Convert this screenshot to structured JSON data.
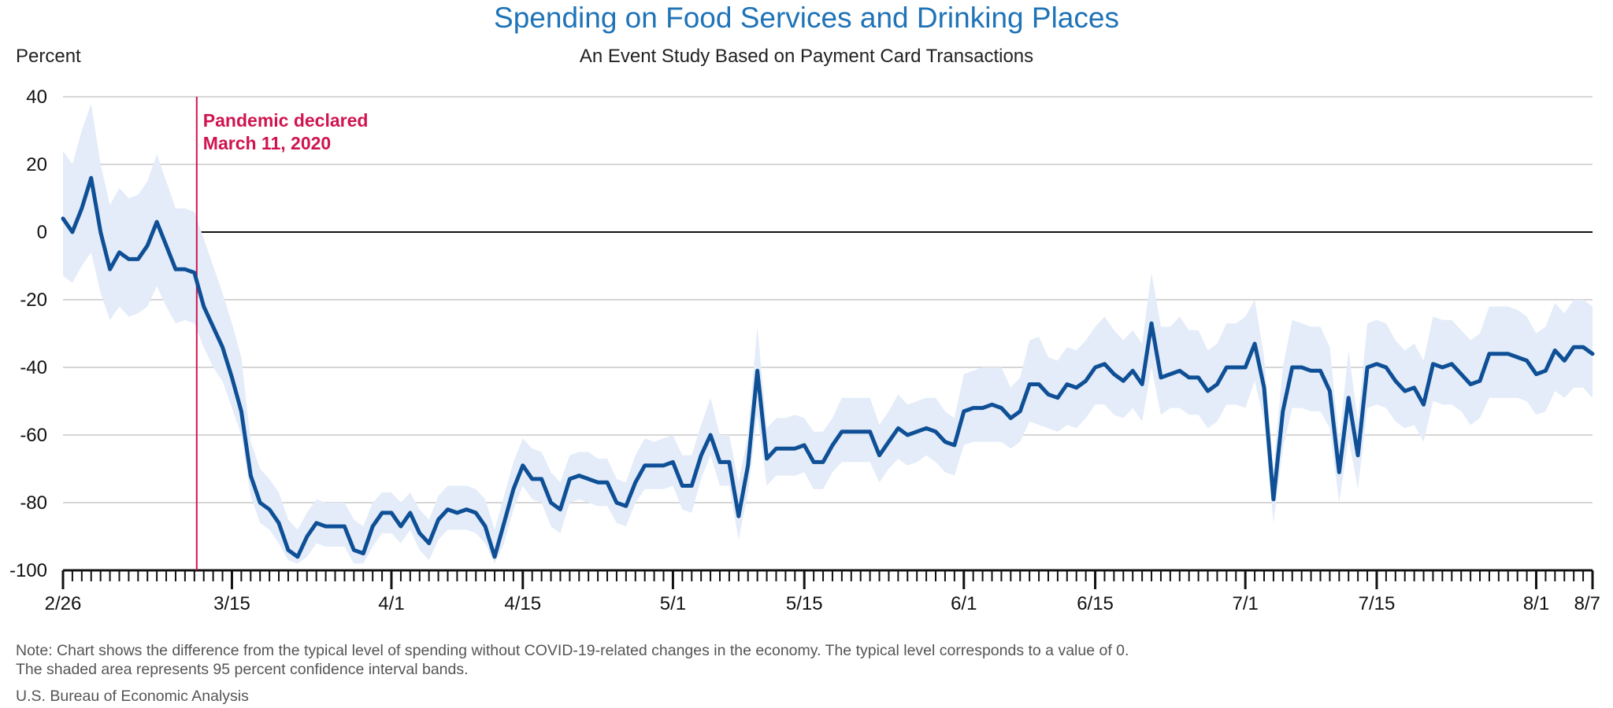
{
  "chart_data": {
    "type": "line",
    "title": "Spending on Food Services and Drinking Places",
    "subtitle": "An Event Study Based on Payment Card Transactions",
    "ylabel": "Percent",
    "ylim": [
      -100,
      40
    ],
    "yticks": [
      40,
      20,
      0,
      -20,
      -40,
      -60,
      -80,
      -100
    ],
    "xlim": [
      "2020-02-26",
      "2020-08-07"
    ],
    "xticks": [
      {
        "date": "2020-02-26",
        "label": "2/26"
      },
      {
        "date": "2020-03-15",
        "label": "3/15"
      },
      {
        "date": "2020-04-01",
        "label": "4/1"
      },
      {
        "date": "2020-04-15",
        "label": "4/15"
      },
      {
        "date": "2020-05-01",
        "label": "5/1"
      },
      {
        "date": "2020-05-15",
        "label": "5/15"
      },
      {
        "date": "2020-06-01",
        "label": "6/1"
      },
      {
        "date": "2020-06-15",
        "label": "6/15"
      },
      {
        "date": "2020-07-01",
        "label": "7/1"
      },
      {
        "date": "2020-07-15",
        "label": "7/15"
      },
      {
        "date": "2020-08-01",
        "label": "8/1"
      },
      {
        "date": "2020-08-07",
        "label": "8/7"
      }
    ],
    "grid": true,
    "zero_line": true,
    "x_start_date": "2020-02-26",
    "values": [
      4,
      0,
      7,
      16,
      0,
      -11,
      -6,
      -8,
      -8,
      -4,
      3,
      -4,
      -11,
      -11,
      -12,
      -22,
      -28,
      -34,
      -43,
      -53,
      -72,
      -80,
      -82,
      -86,
      -94,
      -96,
      -90,
      -86,
      -87,
      -87,
      -87,
      -94,
      -95,
      -87,
      -83,
      -83,
      -87,
      -83,
      -89,
      -92,
      -85,
      -82,
      -83,
      -82,
      -83,
      -87,
      -96,
      -86,
      -76,
      -69,
      -73,
      -73,
      -80,
      -82,
      -73,
      -72,
      -73,
      -74,
      -74,
      -80,
      -81,
      -74,
      -69,
      -69,
      -69,
      -68,
      -75,
      -75,
      -66,
      -60,
      -68,
      -68,
      -84,
      -69,
      -41,
      -67,
      -64,
      -64,
      -64,
      -63,
      -68,
      -68,
      -63,
      -59,
      -59,
      -59,
      -59,
      -66,
      -62,
      -58,
      -60,
      -59,
      -58,
      -59,
      -62,
      -63,
      -53,
      -52,
      -52,
      -51,
      -52,
      -55,
      -53,
      -45,
      -45,
      -48,
      -49,
      -45,
      -46,
      -44,
      -40,
      -39,
      -42,
      -44,
      -41,
      -45,
      -27,
      -43,
      -42,
      -41,
      -43,
      -43,
      -47,
      -45,
      -40,
      -40,
      -40,
      -33,
      -46,
      -79,
      -53,
      -40,
      -40,
      -41,
      -41,
      -47,
      -71,
      -49,
      -66,
      -40,
      -39,
      -40,
      -44,
      -47,
      -46,
      -51,
      -39,
      -40,
      -39,
      -42,
      -45,
      -44,
      -36,
      -36,
      -36,
      -37,
      -38,
      -42,
      -41,
      -35,
      -38,
      -34,
      -34,
      -36
    ],
    "ci_upper": [
      24,
      20,
      30,
      38,
      20,
      8,
      13,
      10,
      11,
      15,
      23,
      15,
      7,
      7,
      6,
      -2,
      -10,
      -18,
      -27,
      -37,
      -62,
      -70,
      -73,
      -77,
      -85,
      -88,
      -83,
      -79,
      -80,
      -80,
      -80,
      -85,
      -87,
      -80,
      -77,
      -77,
      -80,
      -77,
      -82,
      -85,
      -78,
      -75,
      -75,
      -75,
      -76,
      -79,
      -88,
      -78,
      -68,
      -61,
      -64,
      -65,
      -71,
      -74,
      -66,
      -65,
      -65,
      -67,
      -67,
      -73,
      -74,
      -66,
      -61,
      -62,
      -61,
      -60,
      -66,
      -66,
      -57,
      -49,
      -60,
      -60,
      -74,
      -60,
      -28,
      -58,
      -55,
      -55,
      -54,
      -55,
      -59,
      -59,
      -55,
      -49,
      -49,
      -49,
      -49,
      -57,
      -53,
      -48,
      -51,
      -50,
      -49,
      -49,
      -53,
      -55,
      -42,
      -41,
      -40,
      -40,
      -40,
      -46,
      -43,
      -32,
      -31,
      -37,
      -38,
      -34,
      -35,
      -32,
      -28,
      -25,
      -29,
      -32,
      -29,
      -33,
      -12,
      -28,
      -28,
      -25,
      -29,
      -29,
      -35,
      -33,
      -27,
      -27,
      -25,
      -20,
      -37,
      -70,
      -40,
      -26,
      -27,
      -28,
      -28,
      -34,
      -62,
      -35,
      -56,
      -27,
      -26,
      -27,
      -32,
      -35,
      -33,
      -38,
      -25,
      -26,
      -26,
      -29,
      -32,
      -30,
      -22,
      -22,
      -22,
      -23,
      -25,
      -30,
      -28,
      -21,
      -24,
      -20,
      -20,
      -22
    ],
    "ci_lower": [
      -13,
      -15,
      -10,
      -6,
      -18,
      -26,
      -22,
      -25,
      -24,
      -22,
      -16,
      -22,
      -27,
      -26,
      -27,
      -34,
      -40,
      -44,
      -52,
      -60,
      -78,
      -86,
      -88,
      -92,
      -97,
      -98,
      -96,
      -92,
      -93,
      -93,
      -93,
      -98,
      -98,
      -93,
      -89,
      -89,
      -92,
      -88,
      -94,
      -97,
      -91,
      -88,
      -88,
      -88,
      -89,
      -92,
      -98,
      -92,
      -82,
      -75,
      -79,
      -80,
      -87,
      -89,
      -80,
      -79,
      -80,
      -81,
      -81,
      -86,
      -87,
      -80,
      -76,
      -76,
      -76,
      -75,
      -82,
      -83,
      -73,
      -66,
      -75,
      -75,
      -91,
      -77,
      -54,
      -75,
      -72,
      -72,
      -72,
      -71,
      -76,
      -76,
      -71,
      -68,
      -68,
      -68,
      -68,
      -74,
      -70,
      -67,
      -69,
      -68,
      -66,
      -68,
      -71,
      -72,
      -63,
      -62,
      -62,
      -62,
      -62,
      -64,
      -62,
      -56,
      -57,
      -58,
      -59,
      -57,
      -58,
      -55,
      -51,
      -51,
      -54,
      -55,
      -52,
      -56,
      -40,
      -54,
      -52,
      -52,
      -54,
      -54,
      -58,
      -56,
      -51,
      -51,
      -52,
      -44,
      -56,
      -86,
      -64,
      -52,
      -52,
      -53,
      -53,
      -58,
      -80,
      -61,
      -76,
      -52,
      -51,
      -52,
      -56,
      -58,
      -57,
      -62,
      -50,
      -51,
      -51,
      -53,
      -57,
      -55,
      -49,
      -49,
      -49,
      -49,
      -50,
      -54,
      -53,
      -47,
      -49,
      -46,
      -46,
      -49
    ],
    "colors": {
      "line": "#0e4f96",
      "band": "#e3ecf8",
      "event_line": "#d0144f",
      "title": "#1f73b7",
      "grid": "#c8c8c8"
    },
    "event": {
      "date": "2020-03-11",
      "label_line1": "Pandemic declared",
      "label_line2": "March 11, 2020"
    }
  },
  "note_line1": "Note: Chart shows the difference from the typical level of spending without COVID-19-related changes in the economy. The typical level corresponds to a value of 0.",
  "note_line2": "The shaded area represents 95 percent confidence interval bands.",
  "source": "U.S. Bureau of Economic Analysis"
}
